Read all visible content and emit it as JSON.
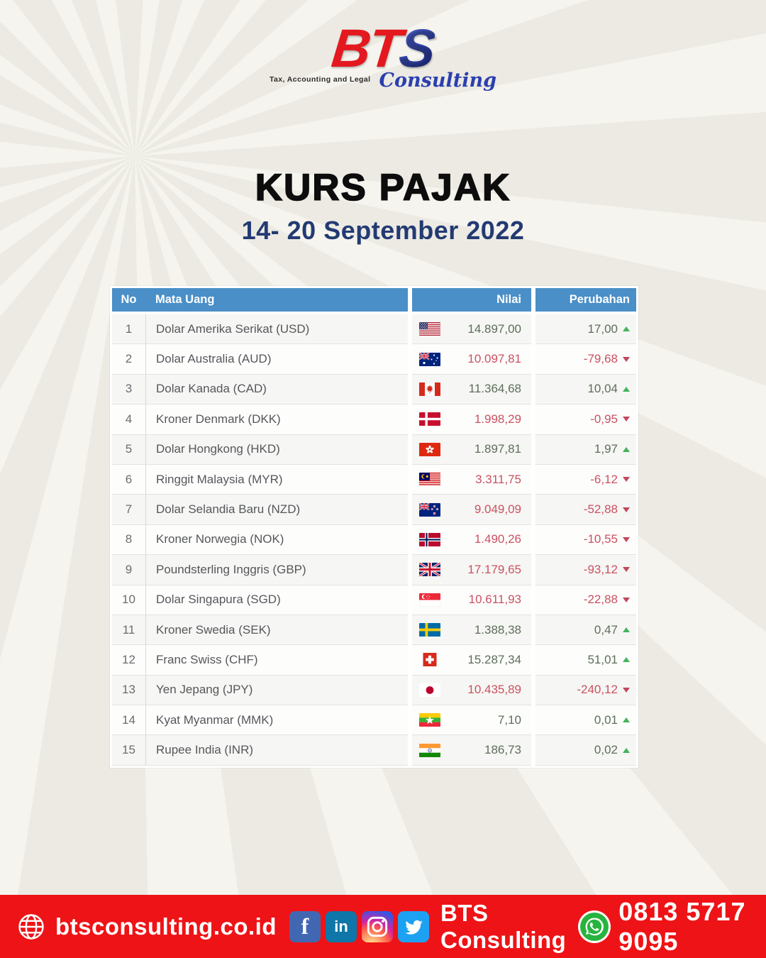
{
  "logo": {
    "bt": "BT",
    "s": "S",
    "tagline": "Tax, Accounting and Legal",
    "consulting": "Consulting"
  },
  "title": "KURS PAJAK",
  "subtitle": "14- 20 September 2022",
  "table": {
    "headers": {
      "no": "No",
      "currency": "Mata Uang",
      "value": "Nilai",
      "change": "Perubahan"
    },
    "rows": [
      {
        "no": "1",
        "currency": "Dolar Amerika Serikat (USD)",
        "flag": "us",
        "value": "14.897,00",
        "change": "17,00",
        "direction": "up"
      },
      {
        "no": "2",
        "currency": "Dolar Australia (AUD)",
        "flag": "au",
        "value": "10.097,81",
        "change": "-79,68",
        "direction": "down"
      },
      {
        "no": "3",
        "currency": "Dolar Kanada (CAD)",
        "flag": "ca",
        "value": "11.364,68",
        "change": "10,04",
        "direction": "up"
      },
      {
        "no": "4",
        "currency": "Kroner Denmark (DKK)",
        "flag": "dk",
        "value": "1.998,29",
        "change": "-0,95",
        "direction": "down"
      },
      {
        "no": "5",
        "currency": "Dolar Hongkong (HKD)",
        "flag": "hk",
        "value": "1.897,81",
        "change": "1,97",
        "direction": "up"
      },
      {
        "no": "6",
        "currency": "Ringgit Malaysia (MYR)",
        "flag": "my",
        "value": "3.311,75",
        "change": "-6,12",
        "direction": "down"
      },
      {
        "no": "7",
        "currency": "Dolar Selandia Baru (NZD)",
        "flag": "nz",
        "value": "9.049,09",
        "change": "-52,88",
        "direction": "down"
      },
      {
        "no": "8",
        "currency": "Kroner Norwegia (NOK)",
        "flag": "no",
        "value": "1.490,26",
        "change": "-10,55",
        "direction": "down"
      },
      {
        "no": "9",
        "currency": "Poundsterling Inggris (GBP)",
        "flag": "gb",
        "value": "17.179,65",
        "change": "-93,12",
        "direction": "down"
      },
      {
        "no": "10",
        "currency": "Dolar Singapura (SGD)",
        "flag": "sg",
        "value": "10.611,93",
        "change": "-22,88",
        "direction": "down"
      },
      {
        "no": "11",
        "currency": "Kroner Swedia (SEK)",
        "flag": "se",
        "value": "1.388,38",
        "change": "0,47",
        "direction": "up"
      },
      {
        "no": "12",
        "currency": "Franc Swiss (CHF)",
        "flag": "ch",
        "value": "15.287,34",
        "change": "51,01",
        "direction": "up"
      },
      {
        "no": "13",
        "currency": "Yen Jepang (JPY)",
        "flag": "jp",
        "value": "10.435,89",
        "change": "-240,12",
        "direction": "down"
      },
      {
        "no": "14",
        "currency": "Kyat Myanmar (MMK)",
        "flag": "mm",
        "value": "7,10",
        "change": "0,01",
        "direction": "up"
      },
      {
        "no": "15",
        "currency": "Rupee India (INR)",
        "flag": "in",
        "value": "186,73",
        "change": "0,02",
        "direction": "up"
      }
    ]
  },
  "footer": {
    "website": "btsconsulting.co.id",
    "facebook_label": "f",
    "linkedin_label": "in",
    "social_name": "BTS Consulting",
    "phone": "0813 5717 9095"
  },
  "colors": {
    "header_bg": "#4a8fc7",
    "positive": "#5d6f59",
    "negative": "#ca5260",
    "arrow_up": "#43b35c",
    "arrow_down": "#c2485c",
    "subtitle": "#233a72",
    "footer_bg": "#ee1316",
    "logo_red": "#e3191f",
    "logo_blue": "#2b3fae"
  }
}
